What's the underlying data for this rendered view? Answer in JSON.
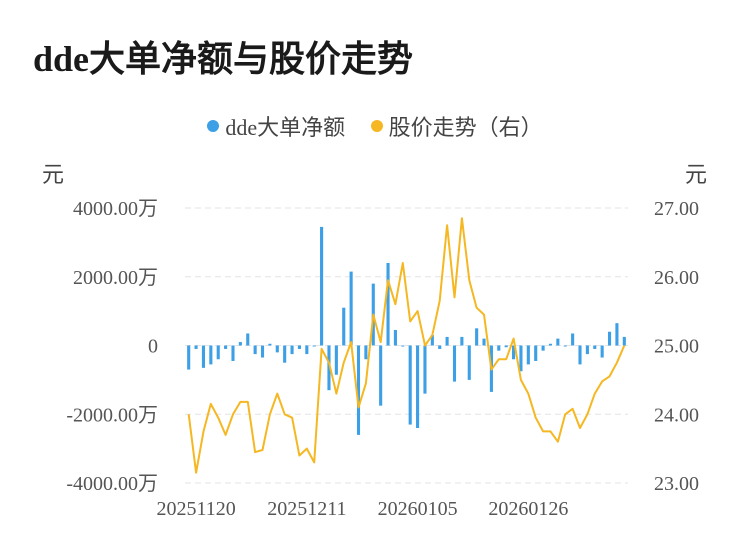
{
  "title": "dde大单净额与股价走势",
  "legend": {
    "dde": "dde大单净额",
    "price": "股价走势（右）"
  },
  "units": {
    "left": "元",
    "right": "元"
  },
  "colors": {
    "bar": "#3d9fe6",
    "line": "#f5b722",
    "grid": "#e3e3e3",
    "axis_text": "#555555"
  },
  "chart_data": {
    "type": "bar+line",
    "title": "dde大单净额与股价走势",
    "x_tick_labels": [
      "20251120",
      "20251211",
      "20260105",
      "20260126"
    ],
    "left_axis": {
      "ticks": [
        "4000.00万",
        "2000.00万",
        "0",
        "-2000.00万",
        "-4000.00万"
      ],
      "ylim": [
        -4000,
        4000
      ],
      "unit": "万元"
    },
    "right_axis": {
      "ticks": [
        "27.00",
        "26.00",
        "25.00",
        "24.00",
        "23.00"
      ],
      "ylim": [
        23.0,
        27.0
      ],
      "unit": "元"
    },
    "series": [
      {
        "name": "dde大单净额",
        "type": "bar",
        "values": [
          -700,
          -100,
          -650,
          -550,
          -400,
          -100,
          -450,
          100,
          350,
          -250,
          -350,
          50,
          -200,
          -500,
          -250,
          -100,
          -250,
          0,
          3450,
          -1300,
          -850,
          1100,
          2150,
          -2600,
          -400,
          1800,
          -1750,
          2400,
          450,
          0,
          -2300,
          -2400,
          -1400,
          300,
          -100,
          250,
          -1050,
          250,
          -1000,
          500,
          200,
          -1350,
          -150,
          -50,
          -400,
          -750,
          -550,
          -450,
          -150,
          50,
          200,
          0,
          350,
          -550,
          -250,
          -100,
          -350,
          400,
          650,
          250
        ]
      },
      {
        "name": "股价走势（右）",
        "type": "line",
        "values": [
          24.0,
          23.15,
          23.75,
          24.15,
          23.95,
          23.7,
          24.0,
          24.18,
          24.18,
          23.45,
          23.48,
          24.0,
          24.3,
          24.0,
          23.95,
          23.4,
          23.5,
          23.3,
          24.95,
          24.75,
          24.3,
          24.75,
          25.05,
          24.1,
          24.45,
          25.45,
          25.05,
          25.95,
          25.6,
          26.2,
          25.35,
          25.5,
          25.0,
          25.15,
          25.65,
          26.75,
          25.7,
          26.85,
          25.95,
          25.55,
          25.45,
          24.65,
          24.8,
          24.8,
          25.1,
          24.5,
          24.3,
          23.95,
          23.75,
          23.75,
          23.6,
          24.0,
          24.08,
          23.8,
          24.0,
          24.3,
          24.48,
          24.55,
          24.75,
          25.0
        ]
      }
    ],
    "grid": "horizontal-dashed",
    "legend_position": "top-center"
  }
}
